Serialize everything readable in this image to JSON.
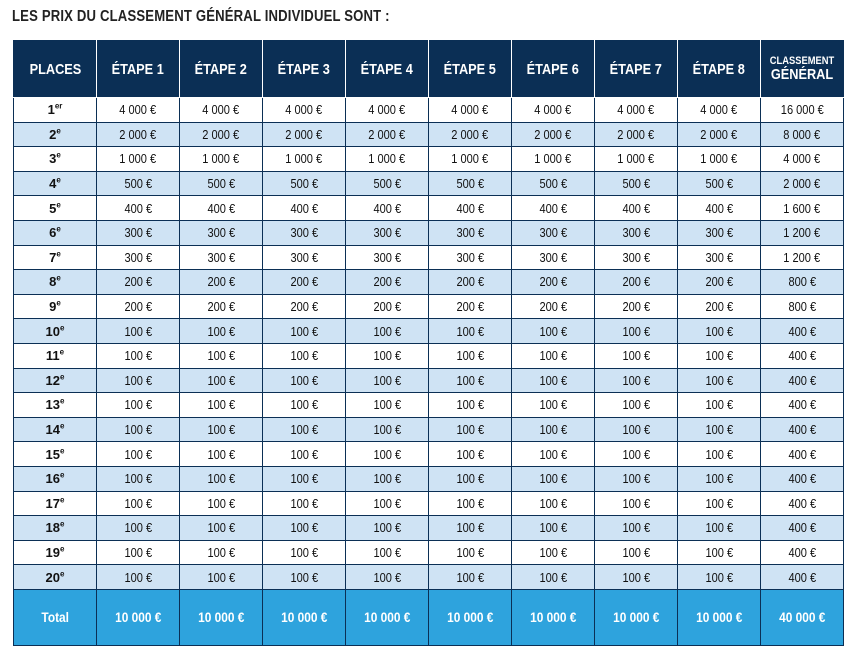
{
  "title": "LES PRIX DU CLASSEMENT GÉNÉRAL INDIVIDUEL SONT :",
  "headers": {
    "places": "PLACES",
    "etapes": [
      "ÉTAPE 1",
      "ÉTAPE 2",
      "ÉTAPE 3",
      "ÉTAPE 4",
      "ÉTAPE 5",
      "ÉTAPE 6",
      "ÉTAPE 7",
      "ÉTAPE 8"
    ],
    "general_top": "CLASSEMENT",
    "general_bottom": "GÉNÉRAL"
  },
  "rows": [
    {
      "num": "1",
      "suffix": "er",
      "stage": "4 000 €",
      "total": "16 000 €"
    },
    {
      "num": "2",
      "suffix": "e",
      "stage": "2 000 €",
      "total": "8 000 €"
    },
    {
      "num": "3",
      "suffix": "e",
      "stage": "1 000 €",
      "total": "4 000 €"
    },
    {
      "num": "4",
      "suffix": "e",
      "stage": "500 €",
      "total": "2 000 €"
    },
    {
      "num": "5",
      "suffix": "e",
      "stage": "400 €",
      "total": "1 600 €"
    },
    {
      "num": "6",
      "suffix": "e",
      "stage": "300 €",
      "total": "1 200 €"
    },
    {
      "num": "7",
      "suffix": "e",
      "stage": "300 €",
      "total": "1 200 €"
    },
    {
      "num": "8",
      "suffix": "e",
      "stage": "200 €",
      "total": "800 €"
    },
    {
      "num": "9",
      "suffix": "e",
      "stage": "200 €",
      "total": "800 €"
    },
    {
      "num": "10",
      "suffix": "e",
      "stage": "100 €",
      "total": "400 €"
    },
    {
      "num": "11",
      "suffix": "e",
      "stage": "100 €",
      "total": "400 €"
    },
    {
      "num": "12",
      "suffix": "e",
      "stage": "100 €",
      "total": "400 €"
    },
    {
      "num": "13",
      "suffix": "e",
      "stage": "100 €",
      "total": "400 €"
    },
    {
      "num": "14",
      "suffix": "e",
      "stage": "100 €",
      "total": "400 €"
    },
    {
      "num": "15",
      "suffix": "e",
      "stage": "100 €",
      "total": "400 €"
    },
    {
      "num": "16",
      "suffix": "e",
      "stage": "100 €",
      "total": "400 €"
    },
    {
      "num": "17",
      "suffix": "e",
      "stage": "100 €",
      "total": "400 €"
    },
    {
      "num": "18",
      "suffix": "e",
      "stage": "100 €",
      "total": "400 €"
    },
    {
      "num": "19",
      "suffix": "e",
      "stage": "100 €",
      "total": "400 €"
    },
    {
      "num": "20",
      "suffix": "e",
      "stage": "100 €",
      "total": "400 €"
    }
  ],
  "totals": {
    "label": "Total",
    "stage": "10 000 €",
    "general": "40 000 €"
  },
  "colors": {
    "header_bg": "#0b2f55",
    "alt_row_bg": "#cfe3f4",
    "total_bg": "#2ea3dd"
  }
}
